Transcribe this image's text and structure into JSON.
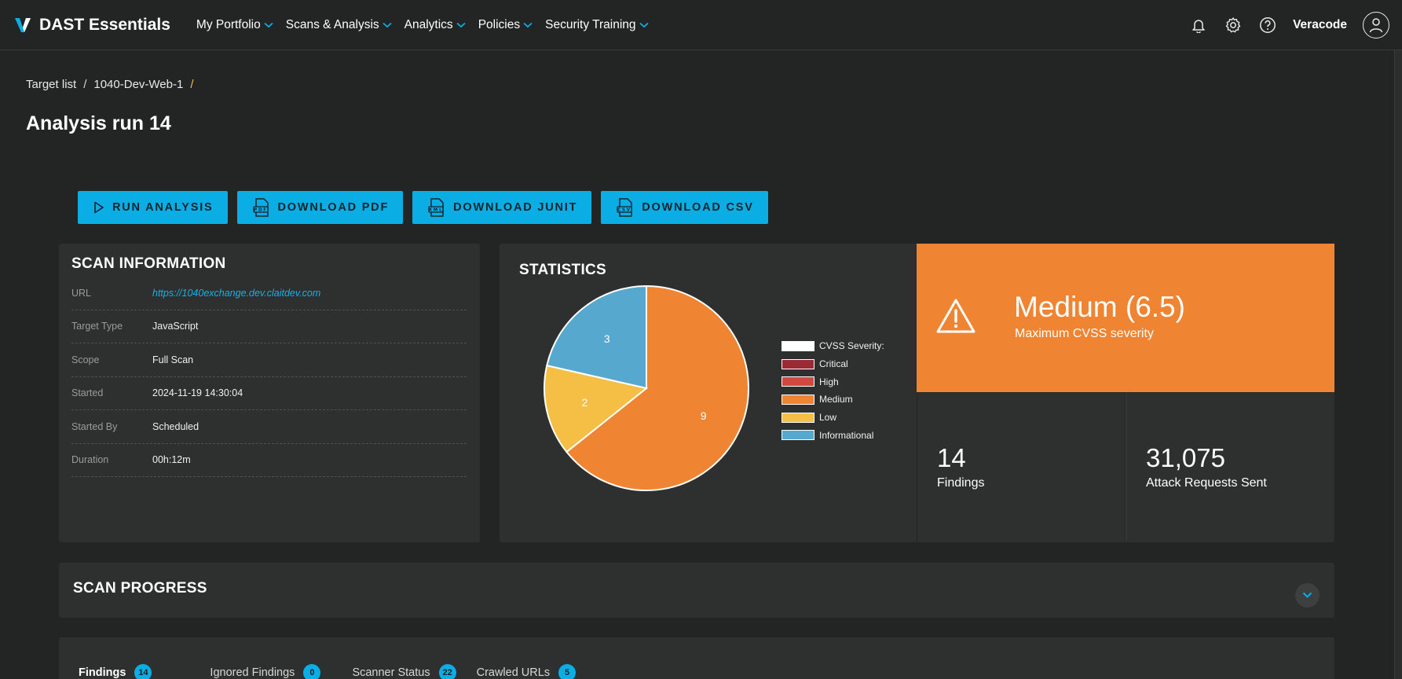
{
  "brand": {
    "name": "DAST Essentials"
  },
  "nav": [
    {
      "label": "My Portfolio"
    },
    {
      "label": "Scans & Analysis"
    },
    {
      "label": "Analytics"
    },
    {
      "label": "Policies"
    },
    {
      "label": "Security Training"
    }
  ],
  "user": {
    "name": "Veracode"
  },
  "breadcrumb": {
    "root": "Target list",
    "current": "1040-Dev-Web-1",
    "separator": "/"
  },
  "page": {
    "title": "Analysis run 14"
  },
  "actions": {
    "run": "RUN ANALYSIS",
    "pdf": "DOWNLOAD PDF",
    "junit": "DOWNLOAD JUNIT",
    "csv": "DOWNLOAD CSV"
  },
  "scan_info": {
    "title": "SCAN INFORMATION",
    "rows": [
      {
        "label": "URL",
        "value": "https://1040exchange.dev.claitdev.com"
      },
      {
        "label": "Target Type",
        "value": "JavaScript"
      },
      {
        "label": "Scope",
        "value": "Full Scan"
      },
      {
        "label": "Started",
        "value": "2024-11-19 14:30:04"
      },
      {
        "label": "Started By",
        "value": "Scheduled"
      },
      {
        "label": "Duration",
        "value": "00h:12m"
      }
    ]
  },
  "statistics": {
    "title": "STATISTICS"
  },
  "chart_data": {
    "type": "pie",
    "legend_title": "CVSS Severity:",
    "legend_placement": "right",
    "categories": [
      "Critical",
      "High",
      "Medium",
      "Low",
      "Informational"
    ],
    "values": [
      0,
      0,
      9,
      2,
      3
    ],
    "colors": [
      "#9b2a37",
      "#d2473f",
      "#ef8433",
      "#f5bf45",
      "#57a8cf"
    ]
  },
  "severity": {
    "value": "Medium (6.5)",
    "caption": "Maximum CVSS severity",
    "color": "#ef8433"
  },
  "metrics": {
    "findings": {
      "value": "14",
      "caption": "Findings"
    },
    "requests": {
      "value": "31,075",
      "caption": "Attack Requests Sent"
    }
  },
  "progress": {
    "title": "SCAN PROGRESS"
  },
  "tabs": [
    {
      "label": "Findings",
      "count": "14"
    },
    {
      "label": "Ignored Findings",
      "count": "0"
    },
    {
      "label": "Scanner Status",
      "count": "22"
    },
    {
      "label": "Crawled URLs",
      "count": "5"
    }
  ],
  "colors": {
    "accent": "#0aaee5",
    "background": "#232424",
    "card": "#2e2f2f"
  }
}
